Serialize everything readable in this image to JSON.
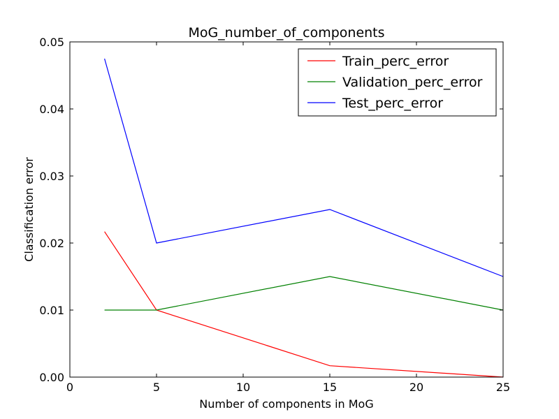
{
  "chart_data": {
    "type": "line",
    "title": "MoG_number_of_components",
    "xlabel": "Number of components in MoG",
    "ylabel": "Classification error",
    "xlim": [
      0,
      25
    ],
    "ylim": [
      0,
      0.05
    ],
    "xticks": [
      0,
      5,
      10,
      15,
      20,
      25
    ],
    "xtick_labels": [
      "0",
      "5",
      "10",
      "15",
      "20",
      "25"
    ],
    "yticks": [
      0,
      0.01,
      0.02,
      0.03,
      0.04,
      0.05
    ],
    "ytick_labels": [
      "0.00",
      "0.01",
      "0.02",
      "0.03",
      "0.04",
      "0.05"
    ],
    "grid": false,
    "legend_position": "top-right",
    "x": [
      2,
      5,
      15,
      25
    ],
    "series": [
      {
        "name": "Train_perc_error",
        "color": "#ff0000",
        "values": [
          0.0217,
          0.01,
          0.0017,
          0.0
        ]
      },
      {
        "name": "Validation_perc_error",
        "color": "#008000",
        "values": [
          0.01,
          0.01,
          0.015,
          0.01
        ]
      },
      {
        "name": "Test_perc_error",
        "color": "#0000ff",
        "values": [
          0.0475,
          0.02,
          0.025,
          0.015
        ]
      }
    ]
  }
}
